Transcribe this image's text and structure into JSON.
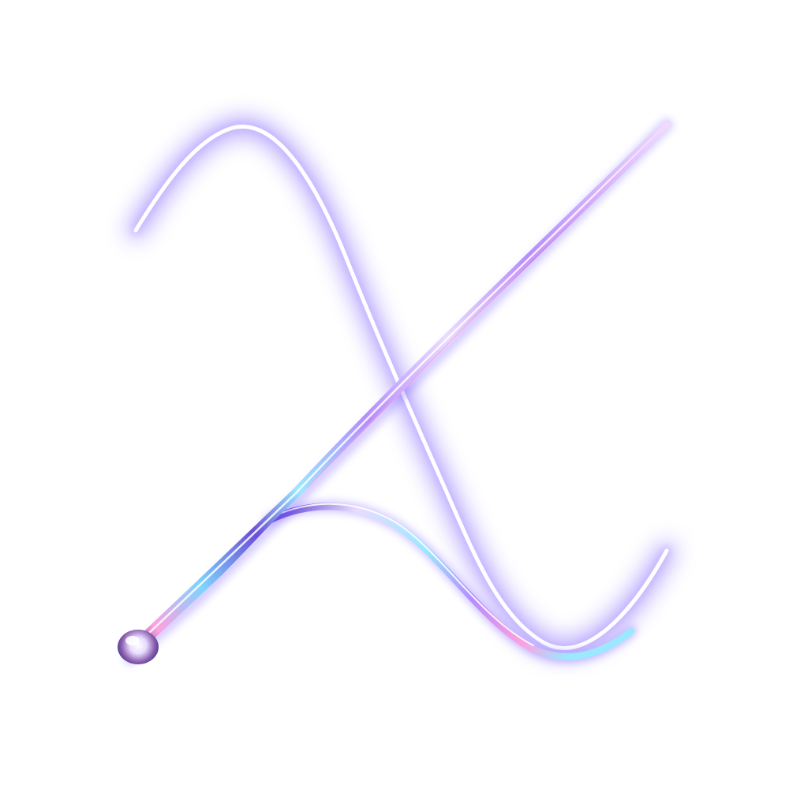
{
  "artwork": {
    "subject": "lambda-glyph",
    "background_color": "#ffffff",
    "glow_color": "#7a5cff",
    "glow_color_soft": "#b9a8ff",
    "chrome_colors": [
      "#ffffff",
      "#e9dcff",
      "#b58cff",
      "#7fd4ff",
      "#9be8ff",
      "#ff9fe0",
      "#6b4fd6",
      "#3a2a7a"
    ],
    "icons": [
      "lambda-swash-stroke",
      "lambda-needle-stroke",
      "lambda-bulb-tip"
    ]
  }
}
